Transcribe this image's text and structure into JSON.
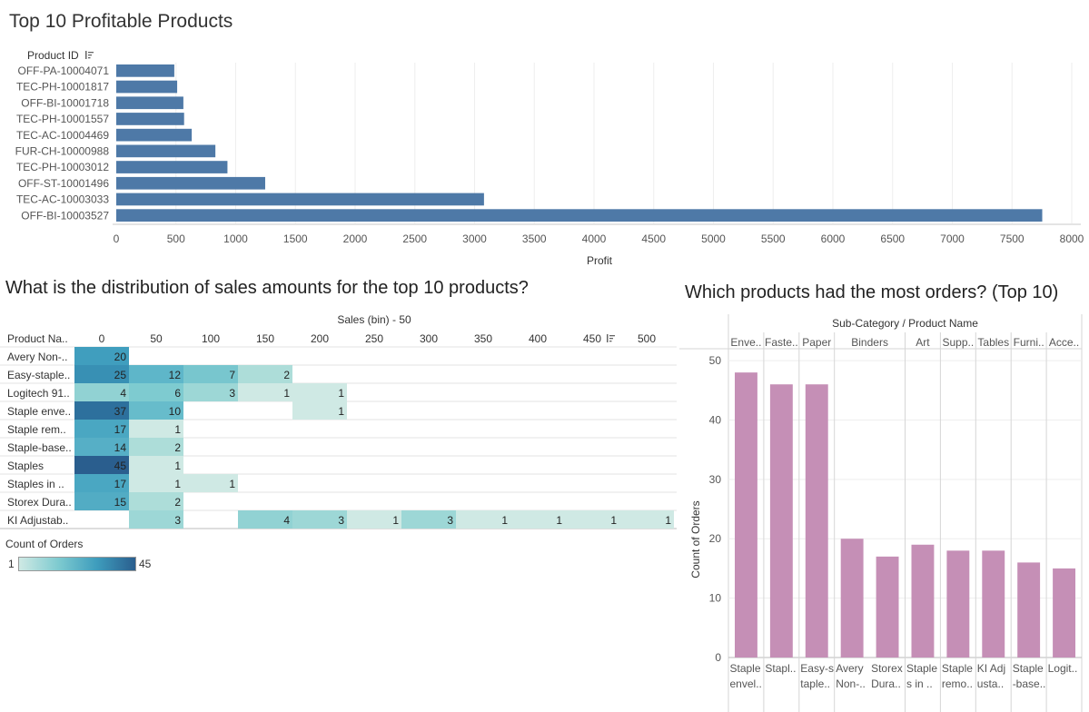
{
  "dashboard": {
    "title_profit": "Top 10 Profitable Products",
    "title_sales": "What is the distribution of sales amounts for the top 10 products?",
    "title_orders": "Which products had the most orders? (Top 10)"
  },
  "colors": {
    "profit_bar": "#4e79a7",
    "orders_bar": "#c58fb6",
    "heat_low": "#cfe9e4",
    "heat_high": "#2a5e8e"
  },
  "chart_data": [
    {
      "type": "bar",
      "orientation": "horizontal",
      "title": "Top 10 Profitable Products",
      "ylabel": "Product ID",
      "xlabel": "Profit",
      "xlim": [
        0,
        8000
      ],
      "xticks": [
        0,
        500,
        1000,
        1500,
        2000,
        2500,
        3000,
        3500,
        4000,
        4500,
        5000,
        5500,
        6000,
        6500,
        7000,
        7500,
        8000
      ],
      "grid": true,
      "categories": [
        "OFF-PA-10004071",
        "TEC-PH-10001817",
        "OFF-BI-10001718",
        "TEC-PH-10001557",
        "TEC-AC-10004469",
        "FUR-CH-10000988",
        "TEC-PH-10003012",
        "OFF-ST-10001496",
        "TEC-AC-10003033",
        "OFF-BI-10003527"
      ],
      "values": [
        486,
        510,
        562,
        568,
        632,
        830,
        931,
        1247,
        3079,
        7753
      ]
    },
    {
      "type": "heatmap",
      "title": "What is the distribution of sales amounts for the top 10 products?",
      "row_header": "Product Na..",
      "col_header": "Sales (bin) - 50",
      "columns": [
        "0",
        "50",
        "100",
        "150",
        "200",
        "250",
        "300",
        "350",
        "400",
        "450",
        "500"
      ],
      "legend_title": "Count of Orders",
      "legend_min": "1",
      "legend_max": "45",
      "rows": [
        {
          "name": "Avery Non-..",
          "values": [
            20,
            null,
            null,
            null,
            null,
            null,
            null,
            null,
            null,
            null,
            null
          ]
        },
        {
          "name": "Easy-staple..",
          "values": [
            25,
            12,
            7,
            2,
            null,
            null,
            null,
            null,
            null,
            null,
            null
          ]
        },
        {
          "name": "Logitech 91..",
          "values": [
            4,
            6,
            3,
            1,
            1,
            null,
            null,
            null,
            null,
            null,
            null
          ]
        },
        {
          "name": "Staple enve..",
          "values": [
            37,
            10,
            null,
            null,
            1,
            null,
            null,
            null,
            null,
            null,
            null
          ]
        },
        {
          "name": "Staple rem..",
          "values": [
            17,
            1,
            null,
            null,
            null,
            null,
            null,
            null,
            null,
            null,
            null
          ]
        },
        {
          "name": "Staple-base..",
          "values": [
            14,
            2,
            null,
            null,
            null,
            null,
            null,
            null,
            null,
            null,
            null
          ]
        },
        {
          "name": "Staples",
          "values": [
            45,
            1,
            null,
            null,
            null,
            null,
            null,
            null,
            null,
            null,
            null
          ]
        },
        {
          "name": "Staples in ..",
          "values": [
            17,
            1,
            1,
            null,
            null,
            null,
            null,
            null,
            null,
            null,
            null
          ]
        },
        {
          "name": "Storex Dura..",
          "values": [
            15,
            2,
            null,
            null,
            null,
            null,
            null,
            null,
            null,
            null,
            null
          ]
        },
        {
          "name": "KI Adjustab..",
          "values": [
            null,
            3,
            null,
            4,
            3,
            1,
            3,
            1,
            1,
            1,
            1
          ]
        }
      ]
    },
    {
      "type": "bar",
      "title": "Which products had the most orders? (Top 10)",
      "header": "Sub-Category / Product Name",
      "ylabel": "Count of Orders",
      "ylim": [
        0,
        52
      ],
      "yticks": [
        0,
        10,
        20,
        30,
        40,
        50
      ],
      "grid": true,
      "groups": [
        {
          "name": "Enve..",
          "count": 1
        },
        {
          "name": "Faste..",
          "count": 1
        },
        {
          "name": "Paper",
          "count": 1
        },
        {
          "name": "Binders",
          "count": 2
        },
        {
          "name": "Art",
          "count": 1
        },
        {
          "name": "Supp..",
          "count": 1
        },
        {
          "name": "Tables",
          "count": 1
        },
        {
          "name": "Furni..",
          "count": 1
        },
        {
          "name": "Acce..",
          "count": 1
        }
      ],
      "categories": [
        [
          "Staple",
          "envel.."
        ],
        [
          "Stapl.."
        ],
        [
          "Easy-s",
          "taple.."
        ],
        [
          "Avery",
          "Non-.."
        ],
        [
          "Storex",
          "Dura.."
        ],
        [
          "Staple",
          "s in .."
        ],
        [
          "Staple",
          "remo.."
        ],
        [
          "KI Adj",
          "usta.."
        ],
        [
          "Staple",
          "-base.."
        ],
        [
          "Logit.."
        ]
      ],
      "values": [
        48,
        46,
        46,
        20,
        17,
        19,
        18,
        18,
        16,
        15
      ]
    }
  ]
}
